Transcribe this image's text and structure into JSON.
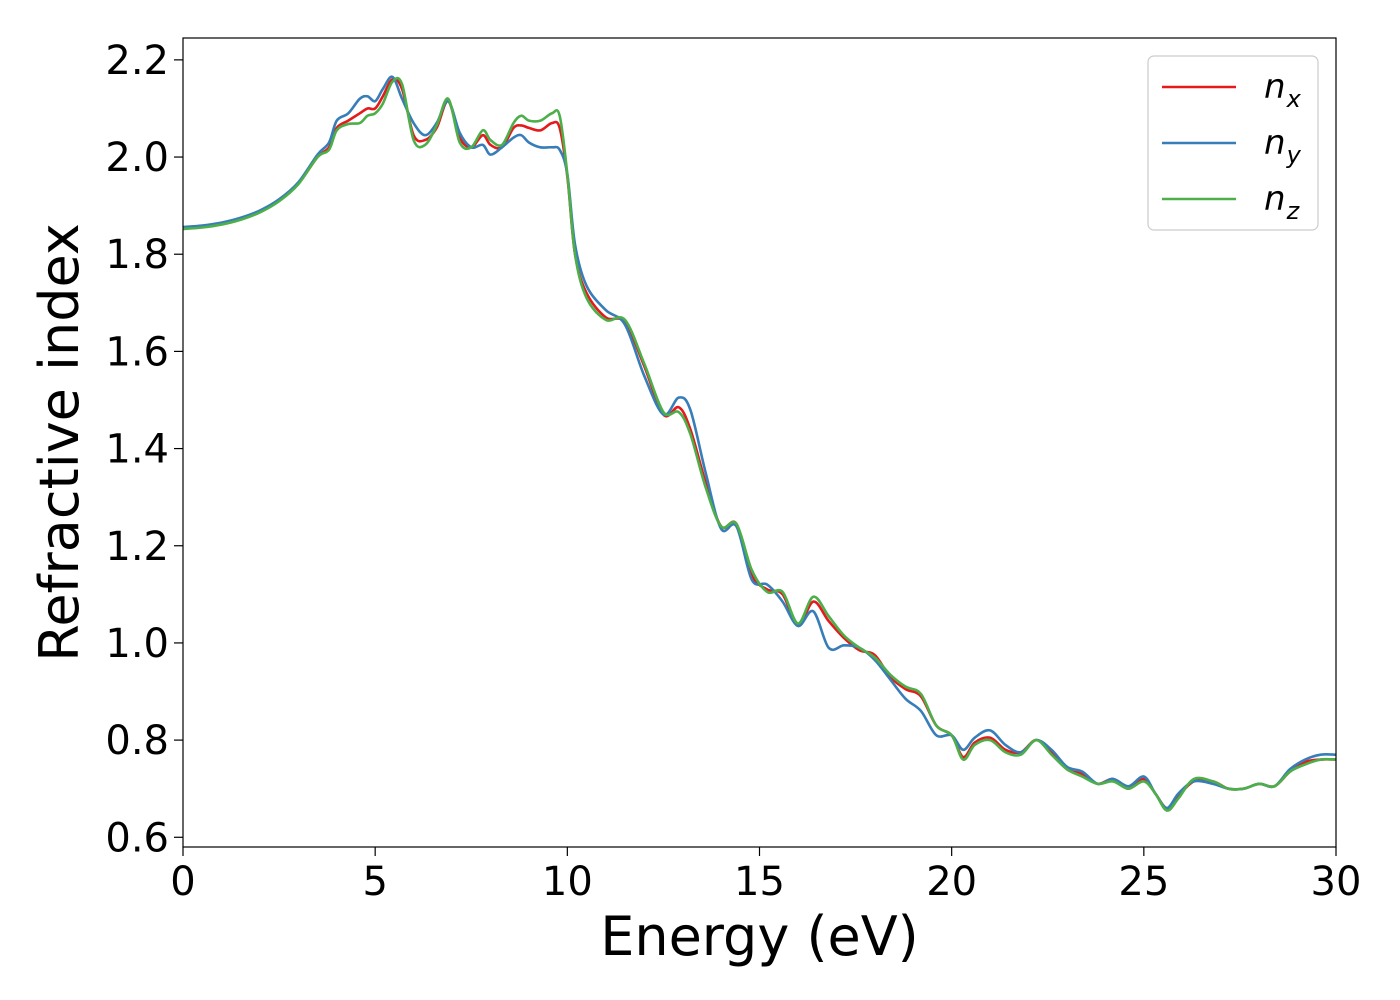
{
  "chart_data": {
    "type": "line",
    "xlabel": "Energy (eV)",
    "ylabel": "Refractive index",
    "xlim": [
      0,
      30
    ],
    "ylim": [
      0.58,
      2.245
    ],
    "xticks": [
      0,
      5,
      10,
      15,
      20,
      25,
      30
    ],
    "yticks": [
      0.6,
      0.8,
      1.0,
      1.2,
      1.4,
      1.6,
      1.8,
      2.0,
      2.2
    ],
    "xtick_labels": [
      "0",
      "5",
      "10",
      "15",
      "20",
      "25",
      "30"
    ],
    "ytick_labels": [
      "0.6",
      "0.8",
      "1.0",
      "1.2",
      "1.4",
      "1.6",
      "1.8",
      "2.0",
      "2.2"
    ],
    "grid": false,
    "legend_position": "top-right",
    "x": [
      0,
      0.5,
      1,
      1.5,
      2,
      2.5,
      3,
      3.5,
      3.8,
      4,
      4.3,
      4.6,
      4.8,
      5,
      5.2,
      5.45,
      5.7,
      6,
      6.3,
      6.6,
      6.9,
      7.2,
      7.5,
      7.8,
      8,
      8.3,
      8.6,
      8.8,
      9,
      9.3,
      9.6,
      9.8,
      10,
      10.2,
      10.5,
      11,
      11.5,
      12,
      12.5,
      12.9,
      13.2,
      13.6,
      14,
      14.4,
      14.8,
      15.2,
      15.6,
      16,
      16.4,
      16.8,
      17.2,
      17.6,
      18,
      18.4,
      18.8,
      19.2,
      19.6,
      20,
      20.3,
      20.6,
      21,
      21.4,
      21.8,
      22.2,
      22.6,
      23,
      23.4,
      23.8,
      24.2,
      24.6,
      25,
      25.3,
      25.6,
      25.9,
      26.3,
      26.8,
      27.2,
      27.6,
      28,
      28.4,
      28.8,
      29.2,
      29.6,
      30
    ],
    "series": [
      {
        "name": "n",
        "subscript": "x",
        "color": "#e41a1c",
        "values": [
          1.853,
          1.856,
          1.862,
          1.872,
          1.887,
          1.91,
          1.945,
          2.0,
          2.02,
          2.06,
          2.075,
          2.09,
          2.1,
          2.1,
          2.125,
          2.16,
          2.14,
          2.045,
          2.035,
          2.06,
          2.115,
          2.04,
          2.02,
          2.045,
          2.025,
          2.02,
          2.06,
          2.065,
          2.06,
          2.055,
          2.07,
          2.06,
          1.96,
          1.8,
          1.72,
          1.67,
          1.66,
          1.57,
          1.47,
          1.485,
          1.44,
          1.33,
          1.24,
          1.245,
          1.14,
          1.11,
          1.1,
          1.035,
          1.085,
          1.045,
          1.01,
          0.985,
          0.975,
          0.93,
          0.905,
          0.89,
          0.83,
          0.81,
          0.765,
          0.795,
          0.805,
          0.78,
          0.775,
          0.8,
          0.775,
          0.74,
          0.73,
          0.71,
          0.72,
          0.7,
          0.72,
          0.69,
          0.66,
          0.685,
          0.715,
          0.715,
          0.7,
          0.7,
          0.71,
          0.705,
          0.735,
          0.755,
          0.76,
          0.76
        ]
      },
      {
        "name": "n",
        "subscript": "y",
        "color": "#377eb8",
        "values": [
          1.856,
          1.859,
          1.865,
          1.875,
          1.89,
          1.913,
          1.948,
          2.005,
          2.03,
          2.075,
          2.09,
          2.12,
          2.125,
          2.115,
          2.14,
          2.165,
          2.12,
          2.07,
          2.045,
          2.07,
          2.115,
          2.05,
          2.02,
          2.025,
          2.005,
          2.02,
          2.04,
          2.045,
          2.03,
          2.02,
          2.02,
          2.015,
          1.965,
          1.82,
          1.735,
          1.685,
          1.655,
          1.55,
          1.47,
          1.505,
          1.48,
          1.35,
          1.235,
          1.24,
          1.13,
          1.12,
          1.085,
          1.035,
          1.065,
          0.99,
          0.995,
          0.99,
          0.965,
          0.925,
          0.885,
          0.86,
          0.81,
          0.81,
          0.78,
          0.805,
          0.82,
          0.79,
          0.775,
          0.8,
          0.78,
          0.745,
          0.735,
          0.71,
          0.72,
          0.705,
          0.725,
          0.69,
          0.66,
          0.69,
          0.715,
          0.71,
          0.7,
          0.7,
          0.71,
          0.705,
          0.74,
          0.76,
          0.77,
          0.77
        ]
      },
      {
        "name": "n",
        "subscript": "z",
        "color": "#4daf4a",
        "values": [
          1.852,
          1.855,
          1.861,
          1.871,
          1.886,
          1.909,
          1.944,
          2.0,
          2.015,
          2.055,
          2.068,
          2.07,
          2.085,
          2.09,
          2.11,
          2.155,
          2.15,
          2.035,
          2.025,
          2.065,
          2.12,
          2.03,
          2.02,
          2.055,
          2.035,
          2.025,
          2.07,
          2.085,
          2.075,
          2.075,
          2.09,
          2.085,
          1.965,
          1.8,
          1.71,
          1.665,
          1.665,
          1.575,
          1.475,
          1.475,
          1.43,
          1.32,
          1.24,
          1.245,
          1.15,
          1.105,
          1.105,
          1.04,
          1.095,
          1.055,
          1.015,
          0.99,
          0.97,
          0.935,
          0.91,
          0.895,
          0.83,
          0.81,
          0.76,
          0.79,
          0.8,
          0.775,
          0.77,
          0.8,
          0.77,
          0.74,
          0.725,
          0.71,
          0.715,
          0.7,
          0.715,
          0.69,
          0.655,
          0.68,
          0.72,
          0.715,
          0.7,
          0.7,
          0.71,
          0.705,
          0.735,
          0.75,
          0.76,
          0.76
        ]
      }
    ]
  }
}
